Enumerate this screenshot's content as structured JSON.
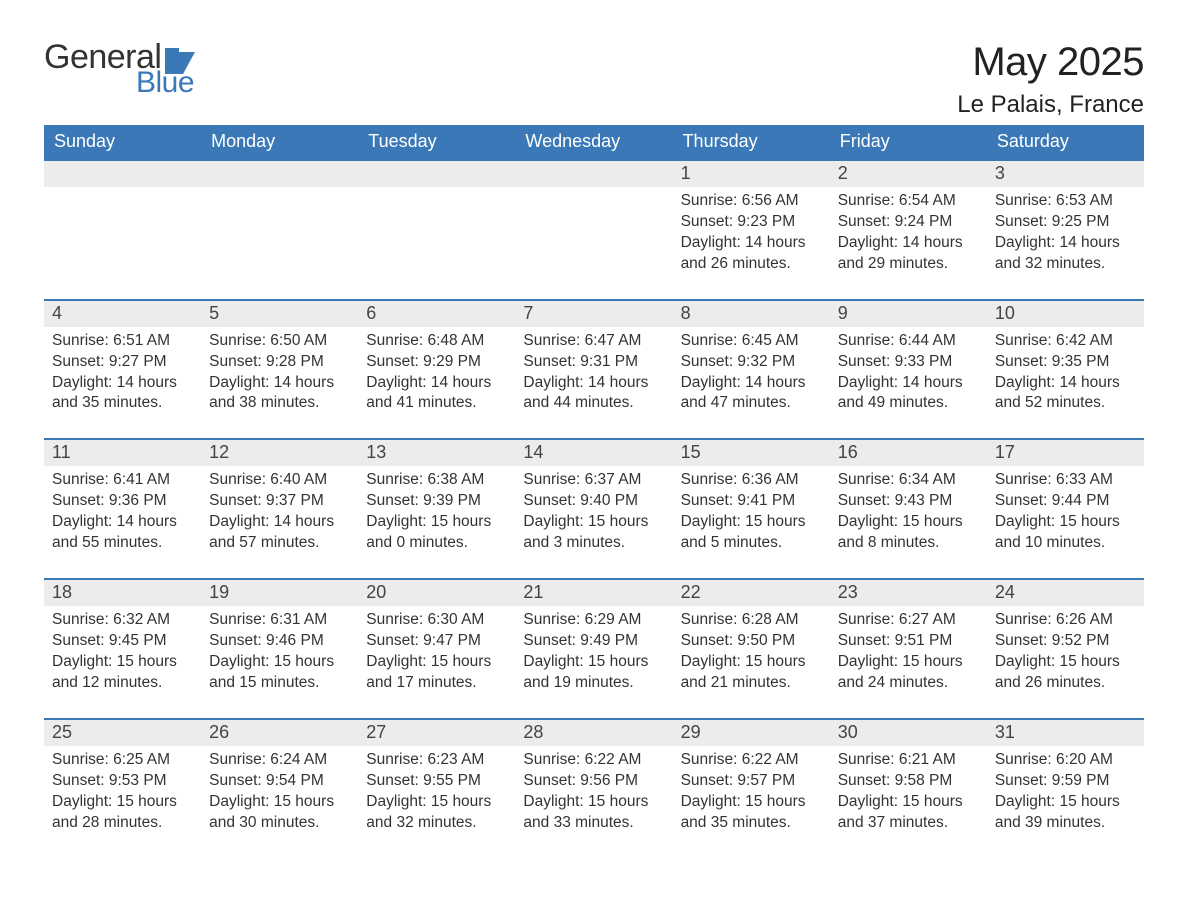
{
  "logo": {
    "text_general": "General",
    "text_blue": "Blue",
    "icon_name": "flag-icon",
    "icon_color": "#3b78b8"
  },
  "header": {
    "month_title": "May 2025",
    "location": "Le Palais, France"
  },
  "colors": {
    "header_bg": "#3b78b8",
    "header_text": "#ffffff",
    "daynum_bg": "#ececec",
    "week_divider": "#3b78b8",
    "body_text": "#333333",
    "background": "#ffffff"
  },
  "typography": {
    "title_fontsize_pt": 30,
    "location_fontsize_pt": 18,
    "dow_fontsize_pt": 14,
    "daynum_fontsize_pt": 14,
    "body_fontsize_pt": 12,
    "font_family": "Arial"
  },
  "calendar": {
    "days_of_week": [
      "Sunday",
      "Monday",
      "Tuesday",
      "Wednesday",
      "Thursday",
      "Friday",
      "Saturday"
    ],
    "weeks": [
      [
        null,
        null,
        null,
        null,
        {
          "n": "1",
          "sunrise": "Sunrise: 6:56 AM",
          "sunset": "Sunset: 9:23 PM",
          "daylight": "Daylight: 14 hours and 26 minutes."
        },
        {
          "n": "2",
          "sunrise": "Sunrise: 6:54 AM",
          "sunset": "Sunset: 9:24 PM",
          "daylight": "Daylight: 14 hours and 29 minutes."
        },
        {
          "n": "3",
          "sunrise": "Sunrise: 6:53 AM",
          "sunset": "Sunset: 9:25 PM",
          "daylight": "Daylight: 14 hours and 32 minutes."
        }
      ],
      [
        {
          "n": "4",
          "sunrise": "Sunrise: 6:51 AM",
          "sunset": "Sunset: 9:27 PM",
          "daylight": "Daylight: 14 hours and 35 minutes."
        },
        {
          "n": "5",
          "sunrise": "Sunrise: 6:50 AM",
          "sunset": "Sunset: 9:28 PM",
          "daylight": "Daylight: 14 hours and 38 minutes."
        },
        {
          "n": "6",
          "sunrise": "Sunrise: 6:48 AM",
          "sunset": "Sunset: 9:29 PM",
          "daylight": "Daylight: 14 hours and 41 minutes."
        },
        {
          "n": "7",
          "sunrise": "Sunrise: 6:47 AM",
          "sunset": "Sunset: 9:31 PM",
          "daylight": "Daylight: 14 hours and 44 minutes."
        },
        {
          "n": "8",
          "sunrise": "Sunrise: 6:45 AM",
          "sunset": "Sunset: 9:32 PM",
          "daylight": "Daylight: 14 hours and 47 minutes."
        },
        {
          "n": "9",
          "sunrise": "Sunrise: 6:44 AM",
          "sunset": "Sunset: 9:33 PM",
          "daylight": "Daylight: 14 hours and 49 minutes."
        },
        {
          "n": "10",
          "sunrise": "Sunrise: 6:42 AM",
          "sunset": "Sunset: 9:35 PM",
          "daylight": "Daylight: 14 hours and 52 minutes."
        }
      ],
      [
        {
          "n": "11",
          "sunrise": "Sunrise: 6:41 AM",
          "sunset": "Sunset: 9:36 PM",
          "daylight": "Daylight: 14 hours and 55 minutes."
        },
        {
          "n": "12",
          "sunrise": "Sunrise: 6:40 AM",
          "sunset": "Sunset: 9:37 PM",
          "daylight": "Daylight: 14 hours and 57 minutes."
        },
        {
          "n": "13",
          "sunrise": "Sunrise: 6:38 AM",
          "sunset": "Sunset: 9:39 PM",
          "daylight": "Daylight: 15 hours and 0 minutes."
        },
        {
          "n": "14",
          "sunrise": "Sunrise: 6:37 AM",
          "sunset": "Sunset: 9:40 PM",
          "daylight": "Daylight: 15 hours and 3 minutes."
        },
        {
          "n": "15",
          "sunrise": "Sunrise: 6:36 AM",
          "sunset": "Sunset: 9:41 PM",
          "daylight": "Daylight: 15 hours and 5 minutes."
        },
        {
          "n": "16",
          "sunrise": "Sunrise: 6:34 AM",
          "sunset": "Sunset: 9:43 PM",
          "daylight": "Daylight: 15 hours and 8 minutes."
        },
        {
          "n": "17",
          "sunrise": "Sunrise: 6:33 AM",
          "sunset": "Sunset: 9:44 PM",
          "daylight": "Daylight: 15 hours and 10 minutes."
        }
      ],
      [
        {
          "n": "18",
          "sunrise": "Sunrise: 6:32 AM",
          "sunset": "Sunset: 9:45 PM",
          "daylight": "Daylight: 15 hours and 12 minutes."
        },
        {
          "n": "19",
          "sunrise": "Sunrise: 6:31 AM",
          "sunset": "Sunset: 9:46 PM",
          "daylight": "Daylight: 15 hours and 15 minutes."
        },
        {
          "n": "20",
          "sunrise": "Sunrise: 6:30 AM",
          "sunset": "Sunset: 9:47 PM",
          "daylight": "Daylight: 15 hours and 17 minutes."
        },
        {
          "n": "21",
          "sunrise": "Sunrise: 6:29 AM",
          "sunset": "Sunset: 9:49 PM",
          "daylight": "Daylight: 15 hours and 19 minutes."
        },
        {
          "n": "22",
          "sunrise": "Sunrise: 6:28 AM",
          "sunset": "Sunset: 9:50 PM",
          "daylight": "Daylight: 15 hours and 21 minutes."
        },
        {
          "n": "23",
          "sunrise": "Sunrise: 6:27 AM",
          "sunset": "Sunset: 9:51 PM",
          "daylight": "Daylight: 15 hours and 24 minutes."
        },
        {
          "n": "24",
          "sunrise": "Sunrise: 6:26 AM",
          "sunset": "Sunset: 9:52 PM",
          "daylight": "Daylight: 15 hours and 26 minutes."
        }
      ],
      [
        {
          "n": "25",
          "sunrise": "Sunrise: 6:25 AM",
          "sunset": "Sunset: 9:53 PM",
          "daylight": "Daylight: 15 hours and 28 minutes."
        },
        {
          "n": "26",
          "sunrise": "Sunrise: 6:24 AM",
          "sunset": "Sunset: 9:54 PM",
          "daylight": "Daylight: 15 hours and 30 minutes."
        },
        {
          "n": "27",
          "sunrise": "Sunrise: 6:23 AM",
          "sunset": "Sunset: 9:55 PM",
          "daylight": "Daylight: 15 hours and 32 minutes."
        },
        {
          "n": "28",
          "sunrise": "Sunrise: 6:22 AM",
          "sunset": "Sunset: 9:56 PM",
          "daylight": "Daylight: 15 hours and 33 minutes."
        },
        {
          "n": "29",
          "sunrise": "Sunrise: 6:22 AM",
          "sunset": "Sunset: 9:57 PM",
          "daylight": "Daylight: 15 hours and 35 minutes."
        },
        {
          "n": "30",
          "sunrise": "Sunrise: 6:21 AM",
          "sunset": "Sunset: 9:58 PM",
          "daylight": "Daylight: 15 hours and 37 minutes."
        },
        {
          "n": "31",
          "sunrise": "Sunrise: 6:20 AM",
          "sunset": "Sunset: 9:59 PM",
          "daylight": "Daylight: 15 hours and 39 minutes."
        }
      ]
    ]
  }
}
